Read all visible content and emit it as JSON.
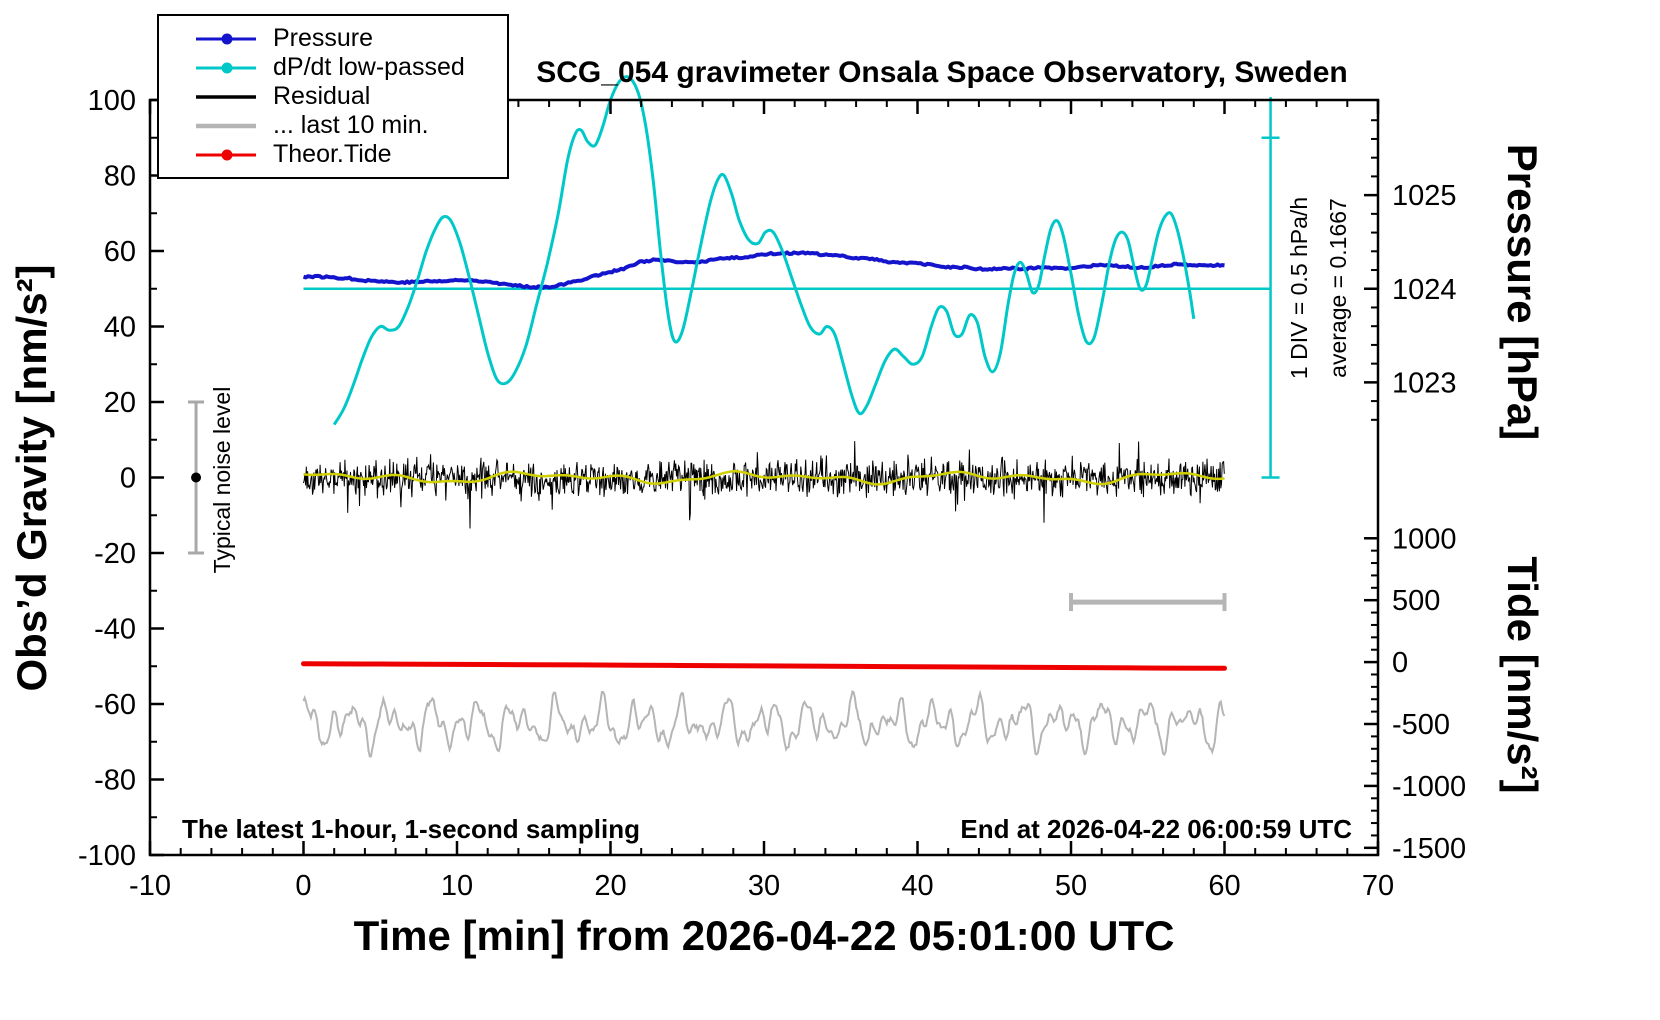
{
  "title": "SCG_054 gravimeter Onsala Space Observatory, Sweden",
  "axes": {
    "x": {
      "label": "Time [min] from 2026-04-22 05:01:00 UTC",
      "min": -10,
      "max": 70,
      "major_ticks": [
        -10,
        0,
        10,
        20,
        30,
        40,
        50,
        60,
        70
      ],
      "minor_step": 2
    },
    "y_left": {
      "label": "Obs’d Gravity [nm/s²]",
      "min": -100,
      "max": 100,
      "major_ticks": [
        -100,
        -80,
        -60,
        -40,
        -20,
        0,
        20,
        40,
        60,
        80,
        100
      ],
      "minor_step": 10
    },
    "y_pressure": {
      "label": "Pressure [hPa]",
      "major_ticks": [
        1023,
        1024,
        1025
      ],
      "minor_step": 0.2,
      "minor_range": [
        1022.6,
        1025.8
      ]
    },
    "y_tide": {
      "label": "Tide [nm/s²]",
      "major_ticks": [
        1000,
        500,
        0,
        -500,
        -1000,
        -1500
      ],
      "minor_step": 100,
      "minor_range": [
        -1500,
        1000
      ]
    }
  },
  "annotations": {
    "div_note": "1 DIV = 0.5 hPa/h",
    "average_note": "average = 0.1667",
    "noise_label": "Typical noise level",
    "sampling_note": "The latest 1-hour, 1-second sampling",
    "end_note": "End at 2026-04-22 06:00:59 UTC"
  },
  "legend": {
    "items": [
      {
        "key": "pressure",
        "label": "Pressure",
        "color": "#1414cc",
        "marker": true,
        "sample_width": 3
      },
      {
        "key": "dpdt",
        "label": "dP/dt low-passed",
        "color": "#00c8c8",
        "marker": true,
        "sample_width": 3
      },
      {
        "key": "residual",
        "label": "Residual",
        "color": "#000000",
        "marker": false,
        "sample_width": 3.5
      },
      {
        "key": "last10",
        "label": "... last 10 min.",
        "color": "#b5b5b5",
        "marker": false,
        "sample_width": 4.5
      },
      {
        "key": "tide",
        "label": "Theor.Tide",
        "color": "#ee0000",
        "marker": true,
        "sample_width": 3
      }
    ]
  },
  "colors": {
    "pressure": "#1414cc",
    "dpdt": "#00c8c8",
    "residual": "#000000",
    "residual_smooth": "#d0d000",
    "last10": "#b5b5b5",
    "tide": "#ee0000",
    "noise_bar": "#a8a8a8",
    "frame": "#000000"
  },
  "chart_data": {
    "type": "line",
    "x_range_minutes": [
      0,
      60
    ],
    "axis_mapping": {
      "pressure_g_at_1024": 50,
      "pressure_g_per_hpa": 24.8,
      "tide_g_at_0": -48.9,
      "tide_g_per_unit": 0.0328
    },
    "series": [
      {
        "key": "pressure",
        "name": "Pressure",
        "unit": "hPa",
        "points": [
          [
            0,
            1024.13
          ],
          [
            1,
            1024.13
          ],
          [
            2,
            1024.12
          ],
          [
            3,
            1024.11
          ],
          [
            4,
            1024.09
          ],
          [
            5,
            1024.08
          ],
          [
            6,
            1024.07
          ],
          [
            7,
            1024.07
          ],
          [
            8,
            1024.08
          ],
          [
            9,
            1024.08
          ],
          [
            10,
            1024.09
          ],
          [
            11,
            1024.09
          ],
          [
            12,
            1024.08
          ],
          [
            13,
            1024.05
          ],
          [
            14,
            1024.03
          ],
          [
            15,
            1024.02
          ],
          [
            16,
            1024.02
          ],
          [
            17,
            1024.05
          ],
          [
            18,
            1024.09
          ],
          [
            19,
            1024.14
          ],
          [
            20,
            1024.18
          ],
          [
            21,
            1024.22
          ],
          [
            22,
            1024.29
          ],
          [
            23,
            1024.31
          ],
          [
            24,
            1024.29
          ],
          [
            25,
            1024.28
          ],
          [
            26,
            1024.29
          ],
          [
            27,
            1024.32
          ],
          [
            28,
            1024.33
          ],
          [
            29,
            1024.34
          ],
          [
            30,
            1024.37
          ],
          [
            31,
            1024.38
          ],
          [
            32,
            1024.38
          ],
          [
            33,
            1024.38
          ],
          [
            34,
            1024.36
          ],
          [
            35,
            1024.35
          ],
          [
            36,
            1024.33
          ],
          [
            37,
            1024.32
          ],
          [
            38,
            1024.29
          ],
          [
            39,
            1024.28
          ],
          [
            40,
            1024.27
          ],
          [
            41,
            1024.25
          ],
          [
            42,
            1024.23
          ],
          [
            43,
            1024.23
          ],
          [
            44,
            1024.21
          ],
          [
            45,
            1024.21
          ],
          [
            46,
            1024.22
          ],
          [
            47,
            1024.21
          ],
          [
            48,
            1024.23
          ],
          [
            49,
            1024.22
          ],
          [
            50,
            1024.21
          ],
          [
            51,
            1024.24
          ],
          [
            52,
            1024.25
          ],
          [
            53,
            1024.24
          ],
          [
            54,
            1024.23
          ],
          [
            55,
            1024.23
          ],
          [
            56,
            1024.25
          ],
          [
            57,
            1024.26
          ],
          [
            58,
            1024.25
          ],
          [
            59,
            1024.25
          ],
          [
            60,
            1024.25
          ]
        ]
      },
      {
        "key": "dpdt",
        "name": "dP/dt low-passed",
        "unit": "left-axis scale, zero line at 50, 1 DIV = 0.5 hPa/h, average = 0.1667",
        "points": [
          [
            2,
            14
          ],
          [
            2.6,
            18
          ],
          [
            3.2,
            24
          ],
          [
            3.8,
            31
          ],
          [
            4.4,
            37
          ],
          [
            5,
            40
          ],
          [
            5.6,
            39
          ],
          [
            6.2,
            40
          ],
          [
            6.8,
            45
          ],
          [
            7.4,
            52
          ],
          [
            8,
            60
          ],
          [
            8.6,
            66
          ],
          [
            9.1,
            69
          ],
          [
            9.6,
            68
          ],
          [
            10.2,
            62
          ],
          [
            10.8,
            53
          ],
          [
            11.4,
            43
          ],
          [
            12,
            33
          ],
          [
            12.6,
            26
          ],
          [
            13.2,
            25
          ],
          [
            13.8,
            28
          ],
          [
            14.5,
            35
          ],
          [
            15.2,
            46
          ],
          [
            15.9,
            57
          ],
          [
            16.6,
            70
          ],
          [
            17.2,
            84
          ],
          [
            17.7,
            91
          ],
          [
            18.1,
            92
          ],
          [
            18.5,
            89
          ],
          [
            19,
            88
          ],
          [
            19.5,
            93
          ],
          [
            20,
            100
          ],
          [
            20.6,
            105
          ],
          [
            21.2,
            106
          ],
          [
            21.8,
            102
          ],
          [
            22.3,
            93
          ],
          [
            22.8,
            78
          ],
          [
            23.3,
            58
          ],
          [
            23.8,
            42
          ],
          [
            24.2,
            36
          ],
          [
            24.7,
            39
          ],
          [
            25.3,
            50
          ],
          [
            25.9,
            62
          ],
          [
            26.5,
            73
          ],
          [
            27,
            79
          ],
          [
            27.4,
            80
          ],
          [
            27.9,
            75
          ],
          [
            28.4,
            68
          ],
          [
            29,
            63
          ],
          [
            29.6,
            62
          ],
          [
            30.1,
            65
          ],
          [
            30.6,
            65
          ],
          [
            31.2,
            60
          ],
          [
            31.8,
            53
          ],
          [
            32.4,
            46
          ],
          [
            33,
            40
          ],
          [
            33.6,
            38
          ],
          [
            34.1,
            40
          ],
          [
            34.6,
            38
          ],
          [
            35.1,
            31
          ],
          [
            35.7,
            22
          ],
          [
            36.2,
            17
          ],
          [
            36.7,
            19
          ],
          [
            37.3,
            25
          ],
          [
            37.9,
            31
          ],
          [
            38.5,
            34
          ],
          [
            39.1,
            32
          ],
          [
            39.7,
            30
          ],
          [
            40.3,
            32
          ],
          [
            40.9,
            40
          ],
          [
            41.4,
            45
          ],
          [
            41.9,
            44
          ],
          [
            42.4,
            38
          ],
          [
            42.9,
            38
          ],
          [
            43.4,
            43
          ],
          [
            43.9,
            41
          ],
          [
            44.4,
            32
          ],
          [
            44.9,
            28
          ],
          [
            45.4,
            33
          ],
          [
            45.9,
            46
          ],
          [
            46.3,
            54
          ],
          [
            46.7,
            57
          ],
          [
            47.1,
            54
          ],
          [
            47.5,
            49
          ],
          [
            47.9,
            51
          ],
          [
            48.3,
            59
          ],
          [
            48.7,
            66
          ],
          [
            49.1,
            68
          ],
          [
            49.5,
            64
          ],
          [
            50,
            54
          ],
          [
            50.5,
            43
          ],
          [
            51,
            36
          ],
          [
            51.5,
            37
          ],
          [
            52,
            46
          ],
          [
            52.5,
            57
          ],
          [
            52.9,
            63
          ],
          [
            53.3,
            65
          ],
          [
            53.7,
            63
          ],
          [
            54.1,
            56
          ],
          [
            54.5,
            50
          ],
          [
            54.9,
            51
          ],
          [
            55.3,
            58
          ],
          [
            55.7,
            65
          ],
          [
            56.1,
            69
          ],
          [
            56.5,
            70
          ],
          [
            56.9,
            66
          ],
          [
            57.3,
            59
          ],
          [
            57.7,
            50
          ],
          [
            58,
            42
          ]
        ]
      },
      {
        "key": "residual",
        "name": "Residual",
        "unit": "nm/s²",
        "mean": 0,
        "typical_range": [
          -10,
          10
        ],
        "gen": {
          "seed": 1337,
          "step": 0.045,
          "base_amp": 4.6,
          "spike_prob": 0.05,
          "clamp": 13.5
        }
      },
      {
        "key": "residual_smooth",
        "name": "Residual smoothed (yellow overlay)",
        "unit": "nm/s²",
        "gen": {
          "step": 0.2,
          "components": [
            [
              0.9,
              0.45,
              0.8
            ],
            [
              0.6,
              0.9,
              2.0
            ],
            [
              0.45,
              1.7,
              4.0
            ]
          ]
        }
      },
      {
        "key": "last10",
        "name": "... last 10 min.",
        "unit": "nm/s² (displayed offset)",
        "display_center_g": -65.2,
        "gen": {
          "seed": 2025,
          "step": 0.08,
          "jitter": 1.2,
          "components": [
            [
              3.4,
              2.3,
              1.1
            ],
            [
              2.6,
              3.9,
              0.3
            ],
            [
              2.0,
              6.1,
              2.4
            ],
            [
              1.4,
              9.7,
              0.7
            ]
          ]
        }
      },
      {
        "key": "tide",
        "name": "Theor.Tide",
        "unit": "nm/s² (tide axis)",
        "points": [
          [
            0,
            -13
          ],
          [
            6,
            -16
          ],
          [
            12,
            -19
          ],
          [
            18,
            -23
          ],
          [
            24,
            -27
          ],
          [
            30,
            -31
          ],
          [
            36,
            -35
          ],
          [
            42,
            -39
          ],
          [
            48,
            -43
          ],
          [
            54,
            -47
          ],
          [
            60,
            -50
          ]
        ]
      }
    ],
    "decorations": {
      "dpdt_zero_line": {
        "x_start": 0,
        "x_end": 63,
        "g": 50
      },
      "dpdt_scale_bar": {
        "x": 63,
        "g_bottom": 0,
        "g_top": 100.8,
        "cap_g": [
          0,
          90
        ]
      },
      "window_bar": {
        "x_start": 50,
        "x_end": 60,
        "g": -33
      },
      "noise_marker": {
        "x": -7,
        "center_g": 0,
        "half_range": 20
      }
    }
  }
}
